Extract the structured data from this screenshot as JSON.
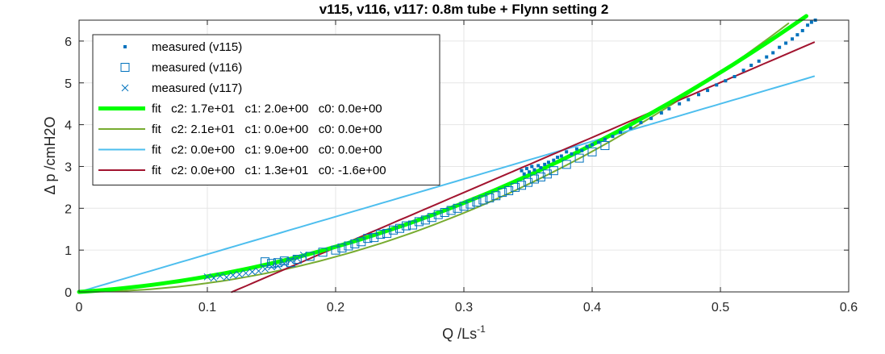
{
  "chart_data": {
    "type": "scatter",
    "title": "v115, v116, v117: 0.8m tube + Flynn setting 2",
    "xlabel": "Q /Ls",
    "xlabel_sup": "-1",
    "ylabel": "Δ p /cmH2O",
    "xlim": [
      0,
      0.6
    ],
    "ylim": [
      0,
      6.5
    ],
    "xticks": [
      0,
      0.1,
      0.2,
      0.3,
      0.4,
      0.5,
      0.6
    ],
    "xtick_labels": [
      "0",
      "0.1",
      "0.2",
      "0.3",
      "0.4",
      "0.5",
      "0.6"
    ],
    "yticks": [
      0,
      1,
      2,
      3,
      4,
      5,
      6
    ],
    "ytick_labels": [
      "0",
      "1",
      "2",
      "3",
      "4",
      "5",
      "6"
    ],
    "grid": true,
    "legend_position": "top-left",
    "series": [
      {
        "name": "measured (v115)",
        "kind": "points",
        "marker": "dot",
        "color": "#0072BD",
        "x": [
          0.345,
          0.347,
          0.349,
          0.351,
          0.353,
          0.355,
          0.358,
          0.36,
          0.363,
          0.366,
          0.37,
          0.373,
          0.376,
          0.38,
          0.384,
          0.388,
          0.392,
          0.396,
          0.4,
          0.405,
          0.41,
          0.416,
          0.422,
          0.43,
          0.438,
          0.446,
          0.454,
          0.46,
          0.468,
          0.475,
          0.483,
          0.49,
          0.497,
          0.504,
          0.511,
          0.518,
          0.524,
          0.53,
          0.536,
          0.541,
          0.546,
          0.551,
          0.556,
          0.56,
          0.564,
          0.568,
          0.571,
          0.574
        ],
        "y": [
          2.9,
          2.82,
          2.95,
          2.87,
          3.0,
          2.92,
          3.02,
          2.97,
          3.05,
          3.1,
          3.15,
          3.22,
          3.25,
          3.35,
          3.3,
          3.42,
          3.38,
          3.48,
          3.52,
          3.58,
          3.65,
          3.72,
          3.82,
          3.92,
          4.05,
          4.15,
          4.28,
          4.38,
          4.5,
          4.6,
          4.72,
          4.82,
          4.95,
          5.05,
          5.15,
          5.3,
          5.42,
          5.52,
          5.62,
          5.72,
          5.85,
          5.95,
          6.05,
          6.15,
          6.25,
          6.38,
          6.45,
          6.5
        ]
      },
      {
        "name": "measured (v116)",
        "kind": "points",
        "marker": "square",
        "color": "#0072BD",
        "x": [
          0.145,
          0.15,
          0.155,
          0.16,
          0.165,
          0.17,
          0.18,
          0.19,
          0.2,
          0.205,
          0.21,
          0.215,
          0.22,
          0.225,
          0.23,
          0.235,
          0.24,
          0.245,
          0.25,
          0.255,
          0.26,
          0.265,
          0.27,
          0.275,
          0.28,
          0.285,
          0.29,
          0.295,
          0.3,
          0.305,
          0.31,
          0.315,
          0.32,
          0.325,
          0.33,
          0.335,
          0.34,
          0.345,
          0.35,
          0.355,
          0.36,
          0.365,
          0.37,
          0.38,
          0.39,
          0.4,
          0.41
        ],
        "y": [
          0.72,
          0.68,
          0.7,
          0.74,
          0.7,
          0.78,
          0.85,
          0.95,
          1.0,
          1.05,
          1.1,
          1.15,
          1.2,
          1.28,
          1.3,
          1.38,
          1.4,
          1.48,
          1.52,
          1.58,
          1.6,
          1.68,
          1.72,
          1.78,
          1.85,
          1.9,
          1.95,
          2.0,
          2.05,
          2.1,
          2.15,
          2.2,
          2.25,
          2.3,
          2.38,
          2.42,
          2.5,
          2.55,
          2.62,
          2.7,
          2.75,
          2.82,
          2.9,
          3.05,
          3.2,
          3.35,
          3.5
        ]
      },
      {
        "name": "measured (v117)",
        "kind": "points",
        "marker": "x",
        "color": "#0072BD",
        "x": [
          0.1,
          0.105,
          0.11,
          0.115,
          0.12,
          0.125,
          0.13,
          0.135,
          0.14,
          0.145,
          0.15,
          0.155,
          0.16,
          0.165,
          0.17,
          0.175
        ],
        "y": [
          0.36,
          0.33,
          0.38,
          0.35,
          0.4,
          0.42,
          0.45,
          0.48,
          0.5,
          0.55,
          0.6,
          0.62,
          0.68,
          0.75,
          0.8,
          0.88
        ]
      },
      {
        "name": "fit   c2: 1.7e+01   c1: 2.0e+00   c0: 0.0e+00",
        "kind": "fit",
        "c2": 17,
        "c1": 2.0,
        "c0": 0,
        "xmin": 0,
        "xmax": 0.567,
        "color": "#00FF00",
        "width": 5
      },
      {
        "name": "fit   c2: 2.1e+01   c1: 0.0e+00   c0: 0.0e+00",
        "kind": "fit",
        "c2": 21,
        "c1": 0,
        "c0": 0,
        "xmin": 0,
        "xmax": 0.553,
        "color": "#77AC30",
        "width": 2
      },
      {
        "name": "fit   c2: 0.0e+00   c1: 9.0e+00   c0: 0.0e+00",
        "kind": "fit",
        "c2": 0,
        "c1": 9.0,
        "c0": 0,
        "xmin": 0,
        "xmax": 0.573,
        "color": "#4DBEEE",
        "width": 2
      },
      {
        "name": "fit   c2: 0.0e+00   c1: 1.3e+01   c0: -1.6e+00",
        "kind": "fit",
        "c2": 0,
        "c1": 13.16,
        "c0": -1.57,
        "xmin": 0.119,
        "xmax": 0.573,
        "color": "#A2142F",
        "width": 2
      }
    ]
  }
}
